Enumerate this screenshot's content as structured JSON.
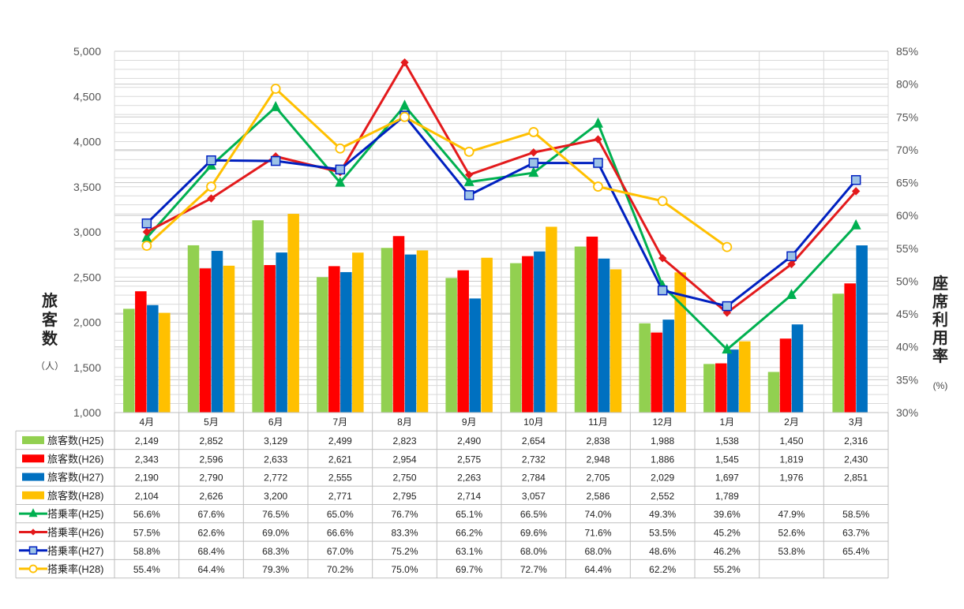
{
  "chart_data": {
    "type": "bar",
    "categories": [
      "4月",
      "5月",
      "6月",
      "7月",
      "8月",
      "9月",
      "10月",
      "11月",
      "12月",
      "1月",
      "2月",
      "3月"
    ],
    "y_left": {
      "label_chars": [
        "旅",
        "客",
        "数"
      ],
      "unit": "（人）",
      "ylim": [
        1000,
        5000
      ],
      "ticks": [
        "1,000",
        "1,500",
        "2,000",
        "2,500",
        "3,000",
        "3,500",
        "4,000",
        "4,500",
        "5,000"
      ]
    },
    "y_right": {
      "label_chars": [
        "座",
        "席",
        "利",
        "用",
        "率"
      ],
      "unit": "(%)",
      "ylim": [
        30,
        85
      ],
      "ticks": [
        "30%",
        "35%",
        "40%",
        "45%",
        "50%",
        "55%",
        "60%",
        "65%",
        "70%",
        "75%",
        "80%",
        "85%"
      ]
    },
    "grid": true,
    "bar_series": [
      {
        "name": "旅客数(H25)",
        "color": "#92D050",
        "values": [
          2149,
          2852,
          3129,
          2499,
          2823,
          2490,
          2654,
          2838,
          1988,
          1538,
          1450,
          2316
        ],
        "labels": [
          "2,149",
          "2,852",
          "3,129",
          "2,499",
          "2,823",
          "2,490",
          "2,654",
          "2,838",
          "1,988",
          "1,538",
          "1,450",
          "2,316"
        ]
      },
      {
        "name": "旅客数(H26)",
        "color": "#FF0000",
        "values": [
          2343,
          2596,
          2633,
          2621,
          2954,
          2575,
          2732,
          2948,
          1886,
          1545,
          1819,
          2430
        ],
        "labels": [
          "2,343",
          "2,596",
          "2,633",
          "2,621",
          "2,954",
          "2,575",
          "2,732",
          "2,948",
          "1,886",
          "1,545",
          "1,819",
          "2,430"
        ]
      },
      {
        "name": "旅客数(H27)",
        "color": "#0070C0",
        "values": [
          2190,
          2790,
          2772,
          2555,
          2750,
          2263,
          2784,
          2705,
          2029,
          1697,
          1976,
          2851
        ],
        "labels": [
          "2,190",
          "2,790",
          "2,772",
          "2,555",
          "2,750",
          "2,263",
          "2,784",
          "2,705",
          "2,029",
          "1,697",
          "1,976",
          "2,851"
        ]
      },
      {
        "name": "旅客数(H28)",
        "color": "#FFC000",
        "values": [
          2104,
          2626,
          3200,
          2771,
          2795,
          2714,
          3057,
          2586,
          2552,
          1789,
          null,
          null
        ],
        "labels": [
          "2,104",
          "2,626",
          "3,200",
          "2,771",
          "2,795",
          "2,714",
          "3,057",
          "2,586",
          "2,552",
          "1,789",
          "",
          ""
        ]
      }
    ],
    "line_series": [
      {
        "name": "搭乗率(H25)",
        "color": "#00B050",
        "marker": "triangle",
        "marker_fill": "#00B050",
        "values": [
          56.6,
          67.6,
          76.5,
          65.0,
          76.7,
          65.1,
          66.5,
          74.0,
          49.3,
          39.6,
          47.9,
          58.5
        ],
        "labels": [
          "56.6%",
          "67.6%",
          "76.5%",
          "65.0%",
          "76.7%",
          "65.1%",
          "66.5%",
          "74.0%",
          "49.3%",
          "39.6%",
          "47.9%",
          "58.5%"
        ]
      },
      {
        "name": "搭乗率(H26)",
        "color": "#E31A1C",
        "marker": "diamond",
        "marker_fill": "#E31A1C",
        "values": [
          57.5,
          62.6,
          69.0,
          66.6,
          83.3,
          66.2,
          69.6,
          71.6,
          53.5,
          45.2,
          52.6,
          63.7
        ],
        "labels": [
          "57.5%",
          "62.6%",
          "69.0%",
          "66.6%",
          "83.3%",
          "66.2%",
          "69.6%",
          "71.6%",
          "53.5%",
          "45.2%",
          "52.6%",
          "63.7%"
        ]
      },
      {
        "name": "搭乗率(H27)",
        "color": "#0020C0",
        "marker": "square",
        "marker_fill": "#9DC3E6",
        "values": [
          58.8,
          68.4,
          68.3,
          67.0,
          75.2,
          63.1,
          68.0,
          68.0,
          48.6,
          46.2,
          53.8,
          65.4
        ],
        "labels": [
          "58.8%",
          "68.4%",
          "68.3%",
          "67.0%",
          "75.2%",
          "63.1%",
          "68.0%",
          "68.0%",
          "48.6%",
          "46.2%",
          "53.8%",
          "65.4%"
        ]
      },
      {
        "name": "搭乗率(H28)",
        "color": "#FFC000",
        "marker": "circle",
        "marker_fill": "#FFFFFF",
        "values": [
          55.4,
          64.4,
          79.3,
          70.2,
          75.0,
          69.7,
          72.7,
          64.4,
          62.2,
          55.2,
          null,
          null
        ],
        "labels": [
          "55.4%",
          "64.4%",
          "79.3%",
          "70.2%",
          "75.0%",
          "69.7%",
          "72.7%",
          "64.4%",
          "62.2%",
          "55.2%",
          "",
          ""
        ]
      }
    ]
  }
}
